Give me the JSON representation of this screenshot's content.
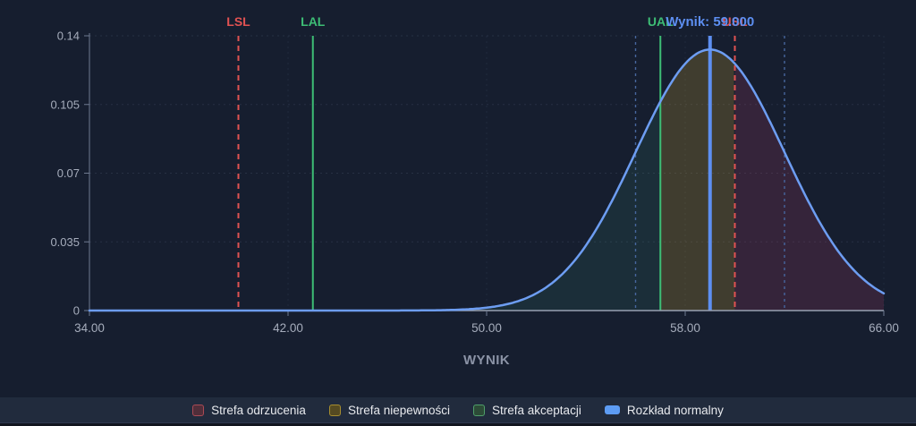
{
  "chart_data": {
    "type": "area",
    "xlabel": "WYNIK",
    "ylabel": "",
    "xlim": [
      34,
      66
    ],
    "ylim": [
      0,
      0.14
    ],
    "x_ticks": [
      "34.00",
      "42.00",
      "50.00",
      "58.00",
      "66.00"
    ],
    "x_tick_values": [
      34,
      42,
      50,
      58,
      66
    ],
    "y_ticks": [
      "0",
      "0.035",
      "0.07",
      "0.105",
      "0.14"
    ],
    "y_tick_values": [
      0,
      0.035,
      0.07,
      0.105,
      0.14
    ],
    "grid": true,
    "distribution": {
      "name": "Rozkład normalny",
      "mean": 59,
      "sd": 3,
      "peak": 0.133,
      "color": "#6d9df2"
    },
    "result": {
      "label": "Wynik: 59.000",
      "value": 59,
      "color": "#5d8ff2",
      "line_width": 4
    },
    "limit_lines": [
      {
        "id": "lsl",
        "label": "LSL",
        "value": 40,
        "style": "dashed",
        "color": "#e05252"
      },
      {
        "id": "lal",
        "label": "LAL",
        "value": 43,
        "style": "solid",
        "color": "#3dbd75"
      },
      {
        "id": "ual",
        "label": "UAL",
        "value": 57,
        "style": "solid",
        "color": "#3dbd75"
      },
      {
        "id": "usl",
        "label": "USL",
        "value": 60,
        "style": "dashed",
        "color": "#e05252"
      }
    ],
    "uncertainty_lines": {
      "values": [
        56,
        62
      ],
      "style": "dashed",
      "color": "#47679e"
    },
    "zones": [
      {
        "id": "rejection-zone",
        "name": "Strefa odrzucenia",
        "ranges": [
          [
            34,
            40
          ],
          [
            60,
            66
          ]
        ],
        "fill": "rgba(205,70,110,0.17)"
      },
      {
        "id": "uncertainty-zone",
        "name": "Strefa niepewności",
        "ranges": [
          [
            40,
            43
          ],
          [
            57,
            60
          ]
        ],
        "fill": "rgba(215,175,50,0.22)"
      },
      {
        "id": "acceptance-zone",
        "name": "Strefa akceptacji",
        "ranges": [
          [
            43,
            57
          ]
        ],
        "fill": "rgba(80,200,150,0.10)"
      }
    ],
    "legend": [
      {
        "id": "rejection-zone",
        "label": "Strefa odrzucenia",
        "swatch": "zone",
        "fill": "#502e3a",
        "border": "#aa4a55"
      },
      {
        "id": "uncertainty-zone",
        "label": "Strefa niepewności",
        "swatch": "zone",
        "fill": "#554a22",
        "border": "#a68d2f"
      },
      {
        "id": "acceptance-zone",
        "label": "Strefa akceptacji",
        "swatch": "zone",
        "fill": "#2c4b37",
        "border": "#4f9f6a"
      },
      {
        "id": "normal-distribution",
        "label": "Rozkład normalny",
        "swatch": "line",
        "fill": "#5d9cf4"
      }
    ],
    "ui_colors": {
      "background": "#161e2f",
      "legend_band": "#212b3d",
      "axis": "#98a1b2",
      "tick_label": "#a6adbc",
      "axis_title": "#8b93a6"
    }
  }
}
